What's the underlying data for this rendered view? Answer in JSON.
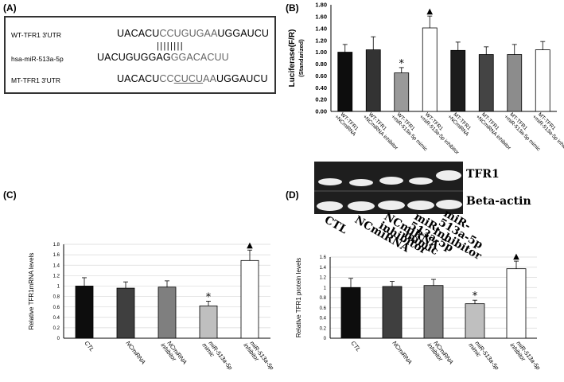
{
  "panelA": {
    "label": "(A)",
    "wt_name": "WT-TFR1 3'UTR",
    "wt_seq_a": "UACACU",
    "wt_seq_b": "CCUGUGAA",
    "wt_seq_c": "UGGAUCU",
    "pairing": "||||||||",
    "mir_name": "hsa-miR-513a-5p",
    "mir_seq_a": "UACUGUGGAG",
    "mir_seq_b": "GGACACUU",
    "mt_name": "MT-TFR1 3'UTR",
    "mt_seq_a": "UACACU",
    "mt_seq_b": "CC",
    "mt_seq_c": "CUCU",
    "mt_seq_d": "AA",
    "mt_seq_e": "UGGAUCU"
  },
  "panelD_blot": {
    "rows": [
      "TFR1",
      "Beta-actin"
    ],
    "lanes": [
      "CTL",
      "NCmiRNA",
      "NCmiRNA inhibitor",
      "miR-513a-5p mimic",
      "miR-513a-5p inhibitor"
    ]
  },
  "chart_data": [
    {
      "id": "B",
      "label": "(B)",
      "type": "bar",
      "ylabel": "Luciferase(F/R)",
      "ylabel2": "(Standarized)",
      "ylim": [
        0,
        1.8
      ],
      "yticks": [
        "0.00",
        "0.20",
        "0.40",
        "0.60",
        "0.80",
        "1.00",
        "1.20",
        "1.40",
        "1.60",
        "1.80"
      ],
      "categories": [
        "WT-TFR1 +NCmiRNA",
        "WT-TFR1 +NCmiRNA inhibitor",
        "WT-TFR1 +miR-513a-5p mimic",
        "WT-TFR1 +miR-513a-5p inhibitor",
        "MT-TFR1 +NCmiRNA",
        "MT-TFR1 +NCmiRNA inhibitor",
        "MT-TFR1 +miR-513a-5p mimic",
        "MT-TFR1 +miR-513a-5p inhibitor"
      ],
      "values": [
        1.0,
        1.04,
        0.65,
        1.41,
        1.03,
        0.96,
        0.96,
        1.04
      ],
      "errors": [
        0.13,
        0.22,
        0.09,
        0.2,
        0.14,
        0.13,
        0.17,
        0.14
      ],
      "colors": [
        "#0d0d0d",
        "#333333",
        "#999999",
        "#ffffff",
        "#1c1c1c",
        "#444444",
        "#8c8c8c",
        "#ffffff"
      ],
      "markers": [
        "",
        "",
        "*",
        "▲",
        "",
        "",
        "",
        ""
      ]
    },
    {
      "id": "C",
      "label": "(C)",
      "type": "bar",
      "ylabel": "Relative TFR1mRNA levels",
      "ylim": [
        0,
        1.8
      ],
      "yticks": [
        "0",
        "0.2",
        "0.4",
        "0.6",
        "0.8",
        "1",
        "1.2",
        "1.4",
        "1.6",
        "1.8"
      ],
      "categories": [
        "CTL",
        "NCmiRNA",
        "NCmiRNA inhibitor",
        "miR-513a-5p mimic",
        "miR-513a-5p inhibitor"
      ],
      "values": [
        1.0,
        0.96,
        0.98,
        0.62,
        1.49
      ],
      "errors": [
        0.16,
        0.12,
        0.12,
        0.09,
        0.2
      ],
      "colors": [
        "#0d0d0d",
        "#3f3f3f",
        "#7f7f7f",
        "#bfbfbf",
        "#ffffff"
      ],
      "markers": [
        "",
        "",
        "",
        "*",
        "▲"
      ]
    },
    {
      "id": "D",
      "label": "(D)",
      "type": "bar",
      "ylabel": "Relative TFR1 protein levels",
      "ylim": [
        0,
        1.6
      ],
      "yticks": [
        "0",
        "0.2",
        "0.4",
        "0.6",
        "0.8",
        "1",
        "1.2",
        "1.4",
        "1.6"
      ],
      "categories": [
        "CTL",
        "NCmiRNA",
        "NCmiRNA inhibitor",
        "miR-513a-5p mimic",
        "miR-513a-5p inhibitor"
      ],
      "values": [
        1.0,
        1.02,
        1.04,
        0.68,
        1.37
      ],
      "errors": [
        0.18,
        0.1,
        0.12,
        0.07,
        0.15
      ],
      "colors": [
        "#0d0d0d",
        "#3f3f3f",
        "#7f7f7f",
        "#bfbfbf",
        "#ffffff"
      ],
      "markers": [
        "",
        "",
        "",
        "*",
        "▲"
      ]
    }
  ]
}
